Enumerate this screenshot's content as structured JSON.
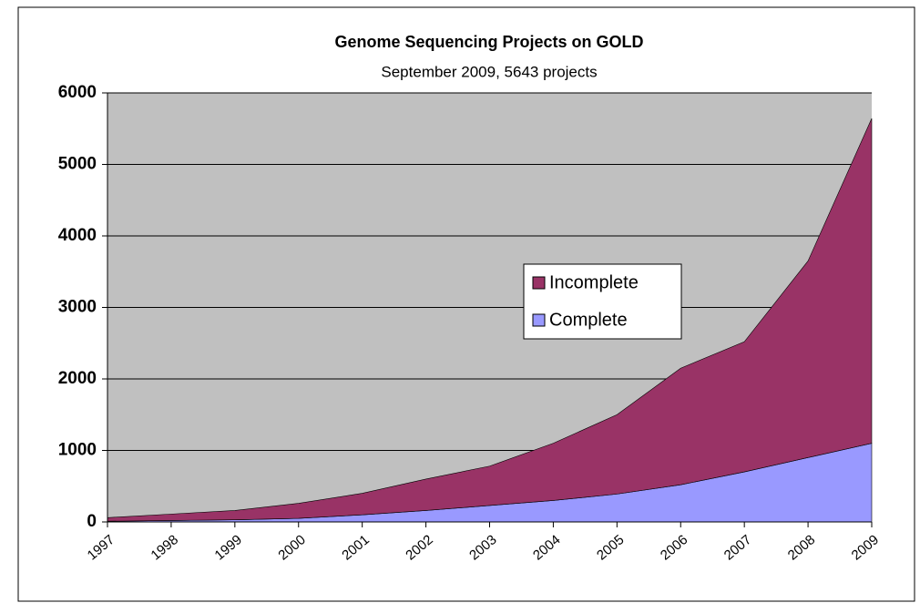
{
  "chart_data": {
    "type": "stacked_area",
    "title": "Genome Sequencing Projects on GOLD",
    "subtitle": "September 2009, 5643 projects",
    "x": [
      1997,
      1998,
      1999,
      2000,
      2001,
      2002,
      2003,
      2004,
      2005,
      2006,
      2007,
      2008,
      2009
    ],
    "xlim": [
      1997,
      2009
    ],
    "series": [
      {
        "name": "Complete",
        "color": "#9999ff",
        "values": [
          10,
          20,
          30,
          50,
          100,
          160,
          230,
          300,
          390,
          520,
          700,
          900,
          1100
        ]
      },
      {
        "name": "Incomplete",
        "color": "#993366",
        "values": [
          50,
          90,
          130,
          210,
          300,
          440,
          550,
          800,
          1110,
          1630,
          1820,
          2750,
          4543
        ]
      }
    ],
    "ylim": [
      0,
      6000
    ],
    "yticks": [
      0,
      1000,
      2000,
      3000,
      4000,
      5000,
      6000
    ],
    "grid": true,
    "plot_background": "#c0c0c0",
    "legend": "center-right"
  }
}
